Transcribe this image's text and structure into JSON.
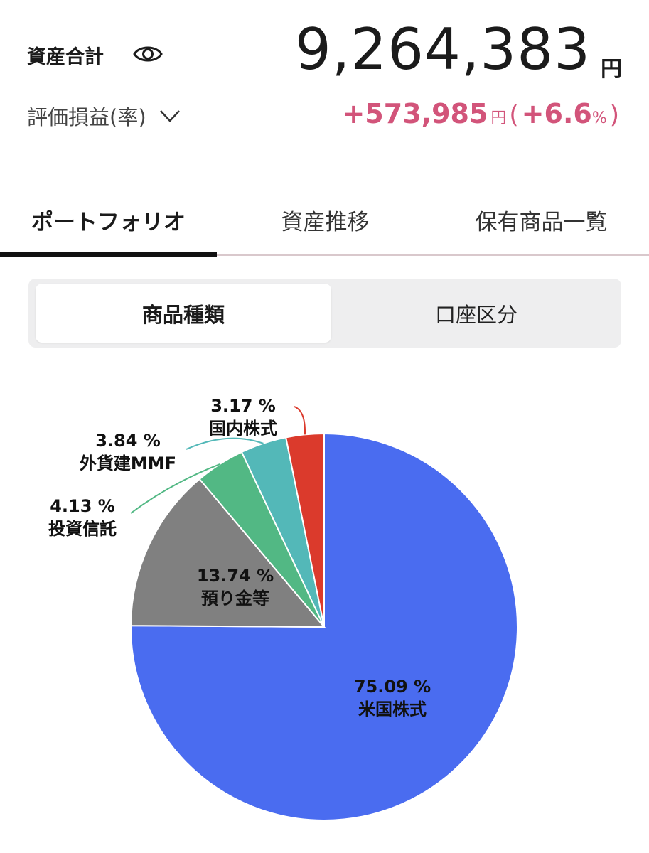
{
  "header": {
    "total_label": "資産合計",
    "total_value": "9,264,383",
    "total_unit": "円",
    "pl_label": "評価損益(率)",
    "pl_amount": "+573,985",
    "pl_unit": "円",
    "pl_open": "(",
    "pl_rate": "+6.6",
    "pl_pct": "%",
    "pl_close": ")"
  },
  "tabs": [
    {
      "label": "ポートフォリオ",
      "active": true
    },
    {
      "label": "資産推移",
      "active": false
    },
    {
      "label": "保有商品一覧",
      "active": false
    }
  ],
  "segment": {
    "options": [
      {
        "label": "商品種類",
        "selected": true
      },
      {
        "label": "口座区分",
        "selected": false
      }
    ]
  },
  "colors": {
    "accent_positive": "#d2547a",
    "us_stocks": "#4a6cf0",
    "deposits": "#808080",
    "mutual_funds": "#52b884",
    "foreign_mmf": "#53b8b8",
    "jp_stocks": "#db3a2c"
  },
  "chart_data": {
    "type": "pie",
    "start_angle_deg": 0,
    "direction": "clockwise",
    "slices": [
      {
        "name": "米国株式",
        "value": 75.09,
        "label": "75.09 %",
        "color": "#4a6cf0"
      },
      {
        "name": "預り金等",
        "value": 13.74,
        "label": "13.74 %",
        "color": "#808080"
      },
      {
        "name": "投資信託",
        "value": 4.13,
        "label": "4.13 %",
        "color": "#52b884"
      },
      {
        "name": "外貨建MMF",
        "value": 3.84,
        "label": "3.84 %",
        "color": "#53b8b8"
      },
      {
        "name": "国内株式",
        "value": 3.17,
        "label": "3.17 %",
        "color": "#db3a2c"
      }
    ]
  }
}
